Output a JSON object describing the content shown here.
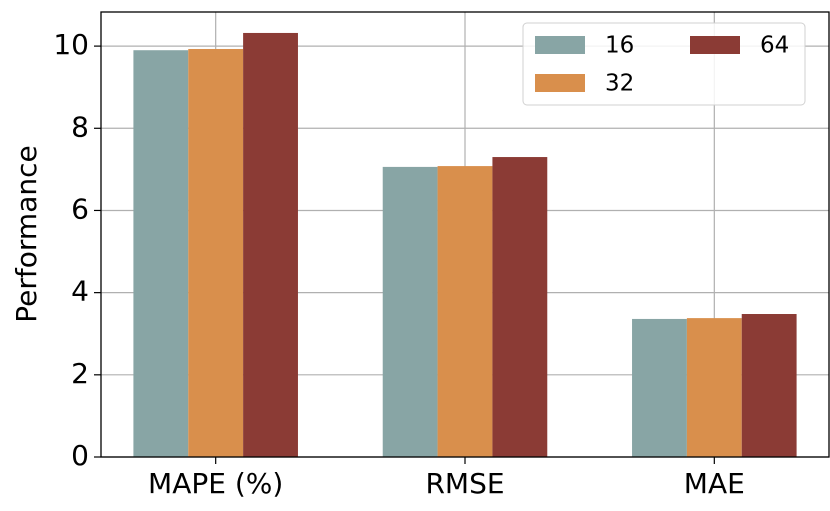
{
  "chart_data": {
    "type": "bar",
    "y_label": "Performance",
    "categories": [
      "MAPE (%)",
      "RMSE",
      "MAE"
    ],
    "series": [
      {
        "name": "16",
        "color": "#88a5a5",
        "values": [
          9.9,
          7.06,
          3.36
        ]
      },
      {
        "name": "32",
        "color": "#d98f4c",
        "values": [
          9.93,
          7.08,
          3.38
        ]
      },
      {
        "name": "64",
        "color": "#8b3b35",
        "values": [
          10.32,
          7.3,
          3.48
        ]
      }
    ],
    "ylim": [
      0,
      10.83
    ],
    "yticks": [
      0,
      2,
      4,
      6,
      8,
      10
    ],
    "grid": true,
    "legend": "upper right"
  }
}
